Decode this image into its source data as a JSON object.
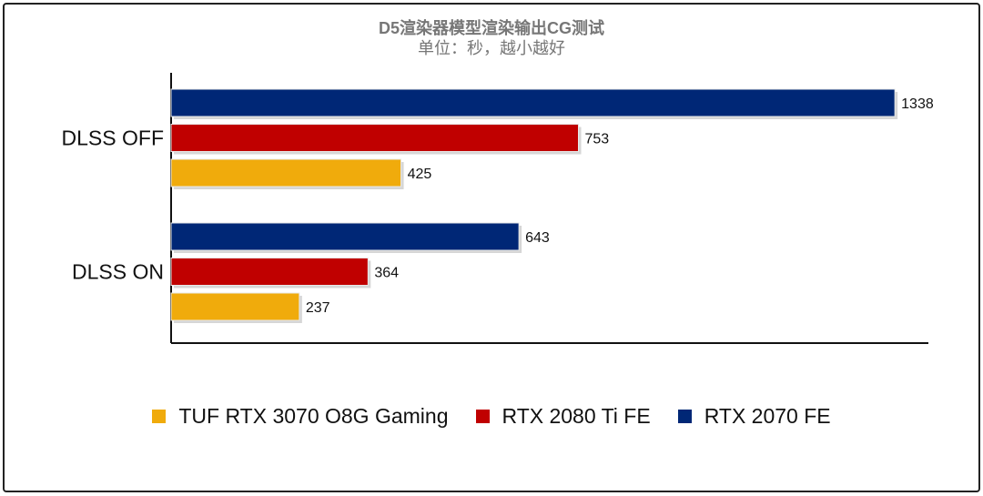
{
  "chart_data": {
    "type": "bar",
    "orientation": "horizontal",
    "title": "D5渲染器模型渲染输出CG测试",
    "subtitle": "单位：秒，越小越好",
    "categories": [
      "DLSS OFF",
      "DLSS ON"
    ],
    "series": [
      {
        "name": "RTX 2070 FE",
        "color": "#002776",
        "values": [
          1338,
          643
        ]
      },
      {
        "name": "RTX 2080 Ti FE",
        "color": "#c00000",
        "values": [
          753,
          364
        ]
      },
      {
        "name": "TUF RTX 3070 O8G Gaming",
        "color": "#f0ab0c",
        "values": [
          425,
          237
        ]
      }
    ],
    "legend_order": [
      "TUF RTX 3070 O8G Gaming",
      "RTX 2080 Ti FE",
      "RTX 2070 FE"
    ],
    "xlim": [
      0,
      1400
    ],
    "grid": false,
    "legend_position": "bottom"
  }
}
